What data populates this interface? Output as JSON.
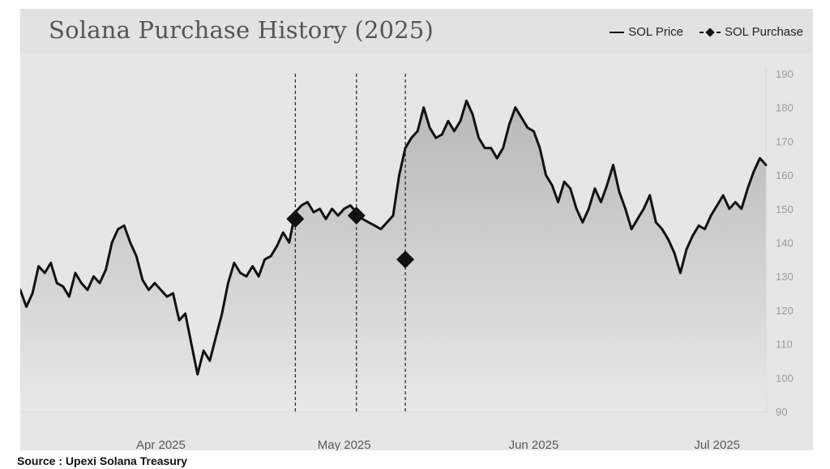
{
  "title": "Solana Purchase History (2025)",
  "legend": {
    "price": "SOL Price",
    "purchase": "SOL Purchase"
  },
  "source": "Source : Upexi Solana Treasury",
  "colors": {
    "line": "#111111",
    "frame": "#e6e6e6",
    "header": "#e2e2e2",
    "fill_top": "#b8b8b8",
    "fill_bottom": "#e8e8e8"
  },
  "chart_data": {
    "type": "line",
    "title": "Solana Purchase History (2025)",
    "xlabel": "",
    "ylabel": "",
    "ylim": [
      90,
      190
    ],
    "yticks": [
      90,
      100,
      110,
      120,
      130,
      140,
      150,
      160,
      170,
      180,
      190
    ],
    "xlim": [
      "2025-03-09",
      "2025-07-09"
    ],
    "xticks": [
      {
        "date": "2025-04-01",
        "label": "Apr 2025"
      },
      {
        "date": "2025-05-01",
        "label": "May 2025"
      },
      {
        "date": "2025-06-01",
        "label": "Jun 2025"
      },
      {
        "date": "2025-07-01",
        "label": "Jul 2025"
      }
    ],
    "grid": false,
    "legend_position": "top-right",
    "series": [
      {
        "name": "SOL Price",
        "points": [
          [
            "2025-03-09",
            126
          ],
          [
            "2025-03-10",
            121
          ],
          [
            "2025-03-11",
            125
          ],
          [
            "2025-03-12",
            133
          ],
          [
            "2025-03-13",
            131
          ],
          [
            "2025-03-14",
            134
          ],
          [
            "2025-03-15",
            128
          ],
          [
            "2025-03-16",
            127
          ],
          [
            "2025-03-17",
            124
          ],
          [
            "2025-03-18",
            131
          ],
          [
            "2025-03-19",
            128
          ],
          [
            "2025-03-20",
            126
          ],
          [
            "2025-03-21",
            130
          ],
          [
            "2025-03-22",
            128
          ],
          [
            "2025-03-23",
            132
          ],
          [
            "2025-03-24",
            140
          ],
          [
            "2025-03-25",
            144
          ],
          [
            "2025-03-26",
            145
          ],
          [
            "2025-03-27",
            140
          ],
          [
            "2025-03-28",
            136
          ],
          [
            "2025-03-29",
            129
          ],
          [
            "2025-03-30",
            126
          ],
          [
            "2025-03-31",
            128
          ],
          [
            "2025-04-01",
            126
          ],
          [
            "2025-04-02",
            124
          ],
          [
            "2025-04-03",
            125
          ],
          [
            "2025-04-04",
            117
          ],
          [
            "2025-04-05",
            119
          ],
          [
            "2025-04-06",
            110
          ],
          [
            "2025-04-07",
            101
          ],
          [
            "2025-04-08",
            108
          ],
          [
            "2025-04-09",
            105
          ],
          [
            "2025-04-10",
            112
          ],
          [
            "2025-04-11",
            119
          ],
          [
            "2025-04-12",
            128
          ],
          [
            "2025-04-13",
            134
          ],
          [
            "2025-04-14",
            131
          ],
          [
            "2025-04-15",
            130
          ],
          [
            "2025-04-16",
            133
          ],
          [
            "2025-04-17",
            130
          ],
          [
            "2025-04-18",
            135
          ],
          [
            "2025-04-19",
            136
          ],
          [
            "2025-04-20",
            139
          ],
          [
            "2025-04-21",
            143
          ],
          [
            "2025-04-22",
            140
          ],
          [
            "2025-04-23",
            149
          ],
          [
            "2025-04-24",
            151
          ],
          [
            "2025-04-25",
            152
          ],
          [
            "2025-04-26",
            149
          ],
          [
            "2025-04-27",
            150
          ],
          [
            "2025-04-28",
            147
          ],
          [
            "2025-04-29",
            150
          ],
          [
            "2025-04-30",
            148
          ],
          [
            "2025-05-01",
            150
          ],
          [
            "2025-05-02",
            151
          ],
          [
            "2025-05-03",
            149
          ],
          [
            "2025-05-04",
            147
          ],
          [
            "2025-05-05",
            146
          ],
          [
            "2025-05-06",
            145
          ],
          [
            "2025-05-07",
            144
          ],
          [
            "2025-05-08",
            146
          ],
          [
            "2025-05-09",
            148
          ],
          [
            "2025-05-10",
            160
          ],
          [
            "2025-05-11",
            168
          ],
          [
            "2025-05-12",
            171
          ],
          [
            "2025-05-13",
            173
          ],
          [
            "2025-05-14",
            180
          ],
          [
            "2025-05-15",
            174
          ],
          [
            "2025-05-16",
            171
          ],
          [
            "2025-05-17",
            172
          ],
          [
            "2025-05-18",
            176
          ],
          [
            "2025-05-19",
            173
          ],
          [
            "2025-05-20",
            176
          ],
          [
            "2025-05-21",
            182
          ],
          [
            "2025-05-22",
            178
          ],
          [
            "2025-05-23",
            171
          ],
          [
            "2025-05-24",
            168
          ],
          [
            "2025-05-25",
            168
          ],
          [
            "2025-05-26",
            165
          ],
          [
            "2025-05-27",
            168
          ],
          [
            "2025-05-28",
            175
          ],
          [
            "2025-05-29",
            180
          ],
          [
            "2025-05-30",
            177
          ],
          [
            "2025-05-31",
            174
          ],
          [
            "2025-06-01",
            173
          ],
          [
            "2025-06-02",
            168
          ],
          [
            "2025-06-03",
            160
          ],
          [
            "2025-06-04",
            157
          ],
          [
            "2025-06-05",
            152
          ],
          [
            "2025-06-06",
            158
          ],
          [
            "2025-06-07",
            156
          ],
          [
            "2025-06-08",
            150
          ],
          [
            "2025-06-09",
            146
          ],
          [
            "2025-06-10",
            150
          ],
          [
            "2025-06-11",
            156
          ],
          [
            "2025-06-12",
            152
          ],
          [
            "2025-06-13",
            157
          ],
          [
            "2025-06-14",
            163
          ],
          [
            "2025-06-15",
            155
          ],
          [
            "2025-06-16",
            150
          ],
          [
            "2025-06-17",
            144
          ],
          [
            "2025-06-18",
            147
          ],
          [
            "2025-06-19",
            150
          ],
          [
            "2025-06-20",
            154
          ],
          [
            "2025-06-21",
            146
          ],
          [
            "2025-06-22",
            144
          ],
          [
            "2025-06-23",
            141
          ],
          [
            "2025-06-24",
            137
          ],
          [
            "2025-06-25",
            131
          ],
          [
            "2025-06-26",
            138
          ],
          [
            "2025-06-27",
            142
          ],
          [
            "2025-06-28",
            145
          ],
          [
            "2025-06-29",
            144
          ],
          [
            "2025-06-30",
            148
          ],
          [
            "2025-07-01",
            151
          ],
          [
            "2025-07-02",
            154
          ],
          [
            "2025-07-03",
            150
          ],
          [
            "2025-07-04",
            152
          ],
          [
            "2025-07-05",
            150
          ],
          [
            "2025-07-06",
            156
          ],
          [
            "2025-07-07",
            161
          ],
          [
            "2025-07-08",
            165
          ],
          [
            "2025-07-09",
            163
          ]
        ]
      },
      {
        "name": "SOL Purchase",
        "points": [
          [
            "2025-04-23",
            147
          ],
          [
            "2025-05-03",
            148
          ],
          [
            "2025-05-11",
            135
          ]
        ]
      }
    ]
  }
}
